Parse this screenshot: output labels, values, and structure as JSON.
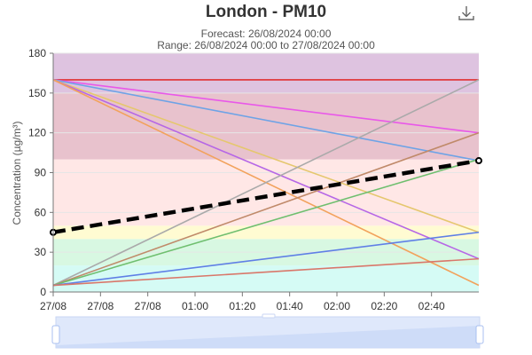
{
  "chart_data": {
    "type": "line",
    "title": "London - PM10",
    "subtitle_lines": [
      "Forecast: 26/08/2024 00:00",
      "Range: 26/08/2024 00:00 to 27/08/2024 00:00"
    ],
    "ylabel": "Concentration (µg/m³)",
    "xlabel": "",
    "ylim": [
      0,
      180
    ],
    "yticks": [
      0,
      30,
      60,
      90,
      120,
      150,
      180
    ],
    "xlim_minutes": [
      0,
      180
    ],
    "xticks": [
      {
        "m": 0,
        "label": "27/08"
      },
      {
        "m": 20,
        "label": "27/08"
      },
      {
        "m": 40,
        "label": "27/08"
      },
      {
        "m": 60,
        "label": "01:00"
      },
      {
        "m": 80,
        "label": "01:20"
      },
      {
        "m": 100,
        "label": "01:40"
      },
      {
        "m": 120,
        "label": "02:00"
      },
      {
        "m": 140,
        "label": "02:20"
      },
      {
        "m": 160,
        "label": "02:40"
      }
    ],
    "bands": [
      {
        "from": 0,
        "to": 20,
        "color": "#d5fbf5"
      },
      {
        "from": 20,
        "to": 40,
        "color": "#d8f8e2"
      },
      {
        "from": 40,
        "to": 50,
        "color": "#fffbd2"
      },
      {
        "from": 50,
        "to": 100,
        "color": "#ffe7e6"
      },
      {
        "from": 100,
        "to": 150,
        "color": "#e8c2cd"
      },
      {
        "from": 150,
        "to": 180,
        "color": "#dec3e0"
      }
    ],
    "series": [
      {
        "color": "#e03030",
        "x": [
          0,
          180
        ],
        "y": [
          160,
          160
        ],
        "dashed": false
      },
      {
        "color": "#e958e9",
        "x": [
          0,
          180
        ],
        "y": [
          160,
          120
        ],
        "dashed": false
      },
      {
        "color": "#6ea3e6",
        "x": [
          0,
          180
        ],
        "y": [
          160,
          99
        ],
        "dashed": false
      },
      {
        "color": "#e5c76e",
        "x": [
          0,
          180
        ],
        "y": [
          160,
          45
        ],
        "dashed": false
      },
      {
        "color": "#b667e6",
        "x": [
          0,
          180
        ],
        "y": [
          160,
          25
        ],
        "dashed": false
      },
      {
        "color": "#f2a25c",
        "x": [
          0,
          180
        ],
        "y": [
          160,
          5
        ],
        "dashed": false
      },
      {
        "color": "#aaaaaa",
        "x": [
          0,
          180
        ],
        "y": [
          5,
          160
        ],
        "dashed": false
      },
      {
        "color": "#c08a6a",
        "x": [
          0,
          180
        ],
        "y": [
          5,
          120
        ],
        "dashed": false
      },
      {
        "color": "#6fbf6f",
        "x": [
          0,
          180
        ],
        "y": [
          5,
          100
        ],
        "dashed": false
      },
      {
        "color": "#5f7fe6",
        "x": [
          0,
          180
        ],
        "y": [
          5,
          45
        ],
        "dashed": false
      },
      {
        "color": "#d9776a",
        "x": [
          0,
          180
        ],
        "y": [
          5,
          25
        ],
        "dashed": false
      },
      {
        "color": "#000000",
        "x": [
          0,
          180
        ],
        "y": [
          45,
          99
        ],
        "dashed": true
      }
    ],
    "grid": true,
    "legend": "none"
  },
  "icons": {
    "download": "download-icon"
  },
  "colors": {
    "navigator_fill": "#dfe8fb",
    "navigator_stroke": "#a8bff0"
  }
}
